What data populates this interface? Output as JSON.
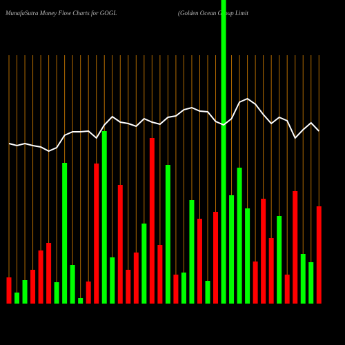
{
  "chart_data": {
    "type": "bar",
    "title": "MunafaSutra  Money Flow  Charts for GOGL",
    "subtitle": "(Golden  Ocean  Group Limit",
    "categories": [
      null,
      null,
      null,
      null,
      null,
      null,
      null,
      null,
      null,
      null,
      null,
      null,
      null,
      null,
      null,
      null,
      null,
      null,
      null,
      null,
      null,
      null,
      null,
      null,
      null,
      null,
      null,
      null,
      null,
      null,
      null,
      null,
      null,
      null,
      null,
      null,
      null,
      null,
      null,
      null
    ],
    "ylim": [
      0,
      440
    ],
    "y2lim": [
      0,
      500
    ],
    "grid": true,
    "grid_color": "#b36b00",
    "series": [
      {
        "type": "bar",
        "colors": [
          "#ff0000",
          "#00ff00",
          "#00ff00",
          "#ff0000",
          "#ff0000",
          "#ff0000",
          "#00ff00",
          "#00ff00",
          "#00ff00",
          "#00ff00",
          "#ff0000",
          "#ff0000",
          "#00ff00",
          "#00ff00",
          "#ff0000",
          "#ff0000",
          "#ff0000",
          "#00ff00",
          "#ff0000",
          "#ff0000",
          "#00ff00",
          "#ff0000",
          "#00ff00",
          "#00ff00",
          "#ff0000",
          "#00ff00",
          "#ff0000",
          "#00ff00",
          "#00ff00",
          "#00ff00",
          "#00ff00",
          "#ff0000",
          "#ff0000",
          "#ff0000",
          "#00ff00",
          "#ff0000",
          "#ff0000",
          "#00ff00",
          "#00ff00",
          "#ff0000"
        ],
        "values": [
          38,
          16,
          34,
          49,
          77,
          88,
          31,
          204,
          56,
          8,
          32,
          203,
          250,
          67,
          172,
          49,
          74,
          116,
          240,
          85,
          201,
          42,
          45,
          150,
          123,
          33,
          133,
          440,
          157,
          197,
          138,
          61,
          152,
          95,
          127,
          42,
          163,
          72,
          60,
          141
        ]
      },
      {
        "type": "line",
        "axis": "y2",
        "color": "#ffffff",
        "values": [
          292,
          289,
          292,
          289,
          287,
          281,
          286,
          304,
          309,
          309,
          310,
          300,
          319,
          331,
          323,
          321,
          317,
          328,
          323,
          320,
          330,
          332,
          341,
          344,
          339,
          338,
          324,
          319,
          328,
          352,
          357,
          349,
          334,
          321,
          330,
          325,
          300,
          312,
          322,
          310
        ]
      }
    ]
  }
}
